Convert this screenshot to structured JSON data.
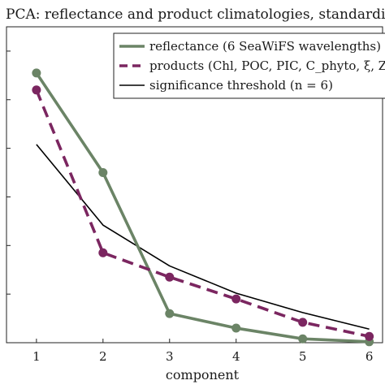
{
  "chart_data": {
    "type": "line",
    "title": "PCA: reflectance and product climatologies, standardised",
    "xlabel": "component",
    "ylabel": "",
    "x": [
      1,
      2,
      3,
      4,
      5,
      6
    ],
    "xlim": [
      0.55,
      6.2
    ],
    "ylim": [
      0,
      0.65
    ],
    "grid": false,
    "legend_position": "top-right",
    "series": [
      {
        "name": "reflectance (6 SeaWiFS wavelengths)",
        "values": [
          0.555,
          0.35,
          0.06,
          0.03,
          0.008,
          0.002
        ],
        "color": "#6b8466",
        "style": "solid",
        "markers": true
      },
      {
        "name": "products (Chl, POC, PIC, C_phyto, ξ, Z_eu",
        "values": [
          0.52,
          0.185,
          0.135,
          0.09,
          0.042,
          0.013
        ],
        "color": "#7b2660",
        "style": "dashed",
        "markers": true
      },
      {
        "name": "significance threshold (n = 6)",
        "values": [
          0.408,
          0.242,
          0.158,
          0.102,
          0.062,
          0.028
        ],
        "color": "#000000",
        "style": "solid",
        "markers": false
      }
    ]
  }
}
